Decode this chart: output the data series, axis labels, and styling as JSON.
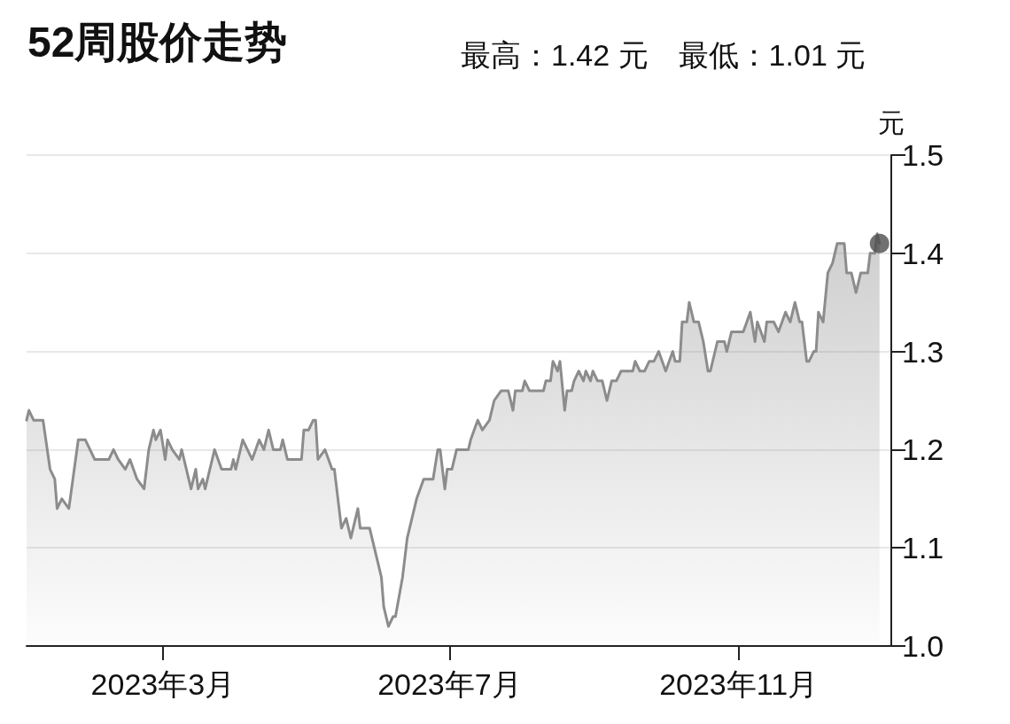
{
  "chart_data": {
    "type": "area",
    "title": "52周股价走势",
    "subtitle": "最高：1.42 元　最低：1.01 元",
    "ylabel": "元",
    "xlim": [
      "2023-01-02",
      "2024-01-05"
    ],
    "xticks": [
      {
        "value": "2023-03-01",
        "label": "2023年3月"
      },
      {
        "value": "2023-07-01",
        "label": "2023年7月"
      },
      {
        "value": "2023-11-01",
        "label": "2023年11月"
      }
    ],
    "ylim": [
      1.0,
      1.5
    ],
    "yticks": [
      {
        "value": 1.0,
        "label": "1.0"
      },
      {
        "value": 1.1,
        "label": "1.1"
      },
      {
        "value": 1.2,
        "label": "1.2"
      },
      {
        "value": 1.3,
        "label": "1.3"
      },
      {
        "value": 1.4,
        "label": "1.4"
      },
      {
        "value": 1.5,
        "label": "1.5"
      }
    ],
    "grid": "y",
    "marker": "none",
    "line_style": "solid",
    "series": [
      {
        "color": "#8c8c8c",
        "x": [
          "2023-01-02",
          "2023-01-03",
          "2023-01-05",
          "2023-01-09",
          "2023-01-12",
          "2023-01-14",
          "2023-01-15",
          "2023-01-17",
          "2023-01-20",
          "2023-01-24",
          "2023-01-27",
          "2023-01-29",
          "2023-01-31",
          "2023-02-06",
          "2023-02-08",
          "2023-02-10",
          "2023-02-13",
          "2023-02-15",
          "2023-02-18",
          "2023-02-21",
          "2023-02-23",
          "2023-02-25",
          "2023-02-26",
          "2023-02-28",
          "2023-03-02",
          "2023-03-03",
          "2023-03-05",
          "2023-03-08",
          "2023-03-09",
          "2023-03-13",
          "2023-03-15",
          "2023-03-16",
          "2023-03-18",
          "2023-03-19",
          "2023-03-23",
          "2023-03-26",
          "2023-03-30",
          "2023-03-31",
          "2023-04-01",
          "2023-04-04",
          "2023-04-08",
          "2023-04-11",
          "2023-04-13",
          "2023-04-15",
          "2023-04-17",
          "2023-04-20",
          "2023-04-21",
          "2023-04-23",
          "2023-04-29",
          "2023-04-30",
          "2023-05-02",
          "2023-05-04",
          "2023-05-05",
          "2023-05-06",
          "2023-05-09",
          "2023-05-12",
          "2023-05-13",
          "2023-05-16",
          "2023-05-18",
          "2023-05-20",
          "2023-05-23",
          "2023-05-24",
          "2023-05-28",
          "2023-05-30",
          "2023-06-02",
          "2023-06-03",
          "2023-06-05",
          "2023-06-07",
          "2023-06-08",
          "2023-06-11",
          "2023-06-13",
          "2023-06-17",
          "2023-06-20",
          "2023-06-24",
          "2023-06-26",
          "2023-06-27",
          "2023-06-29",
          "2023-06-30",
          "2023-07-02",
          "2023-07-04",
          "2023-07-09",
          "2023-07-10",
          "2023-07-13",
          "2023-07-15",
          "2023-07-18",
          "2023-07-20",
          "2023-07-23",
          "2023-07-26",
          "2023-07-28",
          "2023-07-29",
          "2023-08-01",
          "2023-08-02",
          "2023-08-04",
          "2023-08-10",
          "2023-08-11",
          "2023-08-13",
          "2023-08-14",
          "2023-08-16",
          "2023-08-17",
          "2023-08-19",
          "2023-08-20",
          "2023-08-22",
          "2023-08-23",
          "2023-08-25",
          "2023-08-27",
          "2023-08-28",
          "2023-08-30",
          "2023-08-31",
          "2023-09-02",
          "2023-09-04",
          "2023-09-06",
          "2023-09-08",
          "2023-09-10",
          "2023-09-12",
          "2023-09-17",
          "2023-09-18",
          "2023-09-20",
          "2023-09-22",
          "2023-09-24",
          "2023-09-26",
          "2023-09-28",
          "2023-10-01",
          "2023-10-04",
          "2023-10-05",
          "2023-10-07",
          "2023-10-08",
          "2023-10-10",
          "2023-10-11",
          "2023-10-13",
          "2023-10-15",
          "2023-10-17",
          "2023-10-19",
          "2023-10-20",
          "2023-10-23",
          "2023-10-26",
          "2023-10-27",
          "2023-10-29",
          "2023-11-03",
          "2023-11-06",
          "2023-11-08",
          "2023-11-09",
          "2023-11-12",
          "2023-11-13",
          "2023-11-16",
          "2023-11-18",
          "2023-11-21",
          "2023-11-23",
          "2023-11-25",
          "2023-11-27",
          "2023-11-28",
          "2023-11-30",
          "2023-12-01",
          "2023-12-03",
          "2023-12-04",
          "2023-12-05",
          "2023-12-07",
          "2023-12-09",
          "2023-12-11",
          "2023-12-13",
          "2023-12-16",
          "2023-12-17",
          "2023-12-19",
          "2023-12-21",
          "2023-12-23",
          "2023-12-26",
          "2023-12-27",
          "2023-12-29",
          "2023-12-30",
          "2023-12-31"
        ],
        "values": [
          1.23,
          1.24,
          1.23,
          1.23,
          1.18,
          1.17,
          1.14,
          1.15,
          1.14,
          1.21,
          1.21,
          1.2,
          1.19,
          1.19,
          1.2,
          1.19,
          1.18,
          1.19,
          1.17,
          1.16,
          1.2,
          1.22,
          1.21,
          1.22,
          1.19,
          1.21,
          1.2,
          1.19,
          1.2,
          1.16,
          1.18,
          1.16,
          1.17,
          1.16,
          1.2,
          1.18,
          1.18,
          1.19,
          1.18,
          1.21,
          1.19,
          1.21,
          1.2,
          1.22,
          1.2,
          1.2,
          1.21,
          1.19,
          1.19,
          1.22,
          1.22,
          1.23,
          1.23,
          1.19,
          1.2,
          1.18,
          1.18,
          1.12,
          1.13,
          1.11,
          1.14,
          1.12,
          1.12,
          1.1,
          1.07,
          1.04,
          1.02,
          1.03,
          1.03,
          1.07,
          1.11,
          1.15,
          1.17,
          1.17,
          1.2,
          1.2,
          1.16,
          1.18,
          1.18,
          1.2,
          1.2,
          1.21,
          1.23,
          1.22,
          1.23,
          1.25,
          1.26,
          1.26,
          1.24,
          1.26,
          1.26,
          1.27,
          1.26,
          1.26,
          1.27,
          1.27,
          1.29,
          1.28,
          1.29,
          1.24,
          1.26,
          1.26,
          1.27,
          1.28,
          1.27,
          1.28,
          1.27,
          1.28,
          1.27,
          1.27,
          1.25,
          1.27,
          1.27,
          1.28,
          1.28,
          1.29,
          1.28,
          1.28,
          1.29,
          1.29,
          1.3,
          1.28,
          1.3,
          1.29,
          1.29,
          1.33,
          1.33,
          1.35,
          1.33,
          1.33,
          1.31,
          1.28,
          1.28,
          1.31,
          1.31,
          1.3,
          1.32,
          1.32,
          1.34,
          1.31,
          1.33,
          1.31,
          1.33,
          1.33,
          1.32,
          1.34,
          1.33,
          1.35,
          1.33,
          1.33,
          1.29,
          1.29,
          1.3,
          1.3,
          1.34,
          1.33,
          1.38,
          1.39,
          1.41,
          1.41,
          1.38,
          1.38,
          1.36,
          1.38,
          1.38,
          1.4,
          1.4,
          1.42,
          1.41
        ]
      },
      {
        "type": "scatter",
        "color": "#4d4d4d",
        "marker": "circle",
        "x": [
          "2023-12-31"
        ],
        "values": [
          1.41
        ]
      }
    ]
  }
}
